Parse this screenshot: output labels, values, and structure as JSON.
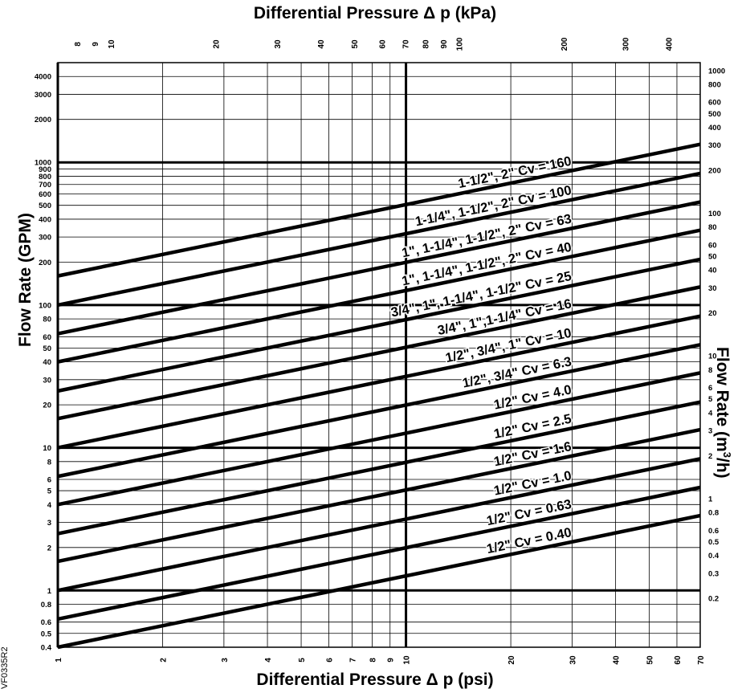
{
  "chart_data": {
    "type": "line",
    "title_top": "Differential Pressure Δ p (kPa)",
    "xlabel": "Differential Pressure Δ p (psi)",
    "ylabel_left": "Flow Rate (GPM)",
    "ylabel_right_main": "Flow Rate (m",
    "ylabel_right_sup": "3",
    "ylabel_right_tail": "/h)",
    "figure_code": "VF0335R2",
    "x_scale": "log",
    "y_scale": "log",
    "xlim": [
      1,
      70
    ],
    "ylim": [
      0.4,
      5000
    ],
    "grid": true,
    "x_ticks": [
      "1",
      "2",
      "3",
      "4",
      "5",
      "6",
      "7",
      "8",
      "9",
      "10",
      "20",
      "30",
      "40",
      "50",
      "60",
      "70"
    ],
    "y_ticks_left": [
      "0.4",
      "0.5",
      "0.6",
      "0.8",
      "1",
      "2",
      "3",
      "4",
      "5",
      "6",
      "8",
      "10",
      "20",
      "30",
      "40",
      "50",
      "60",
      "80",
      "100",
      "200",
      "300",
      "400",
      "500",
      "600",
      "700",
      "800",
      "900",
      "1000",
      "2000",
      "3000",
      "4000"
    ],
    "kpa_ticks": [
      "8",
      "9",
      "10",
      "20",
      "30",
      "40",
      "50",
      "60",
      "70",
      "80",
      "90",
      "100",
      "200",
      "300",
      "400"
    ],
    "m3h_ticks": [
      "0.2",
      "0.3",
      "0.4",
      "0.5",
      "0.6",
      "0.8",
      "1",
      "2",
      "3",
      "4",
      "5",
      "6",
      "8",
      "10",
      "20",
      "30",
      "40",
      "50",
      "60",
      "80",
      "100",
      "200",
      "300",
      "400",
      "500",
      "600",
      "800",
      "1000"
    ],
    "series": [
      {
        "label": "1-1/2\", 2\" Cv = 160",
        "cv": 160
      },
      {
        "label": "1-1/4\", 1-1/2\", 2\" Cv = 100",
        "cv": 100
      },
      {
        "label": "1\", 1-1/4\", 1-1/2\", 2\" Cv = 63",
        "cv": 63
      },
      {
        "label": "1\", 1-1/4\", 1-1/2\", 2\" Cv = 40",
        "cv": 40
      },
      {
        "label": "3/4\", 1\", 1-1/4\", 1-1/2\" Cv = 25",
        "cv": 25
      },
      {
        "label": "3/4\", 1\",1-1/4\" Cv = 16",
        "cv": 16
      },
      {
        "label": "1/2\", 3/4\", 1\" Cv = 10",
        "cv": 10
      },
      {
        "label": "1/2\", 3/4\" Cv = 6.3",
        "cv": 6.3
      },
      {
        "label": "1/2\" Cv = 4.0",
        "cv": 4.0
      },
      {
        "label": "1/2\" Cv = 2.5",
        "cv": 2.5
      },
      {
        "label": "1/2\" Cv = 1.6",
        "cv": 1.6
      },
      {
        "label": "1/2\" Cv = 1.0",
        "cv": 1.0
      },
      {
        "label": "1/2\" Cv = 0.63",
        "cv": 0.63
      },
      {
        "label": "1/2\" Cv = 0.40",
        "cv": 0.4
      }
    ]
  }
}
